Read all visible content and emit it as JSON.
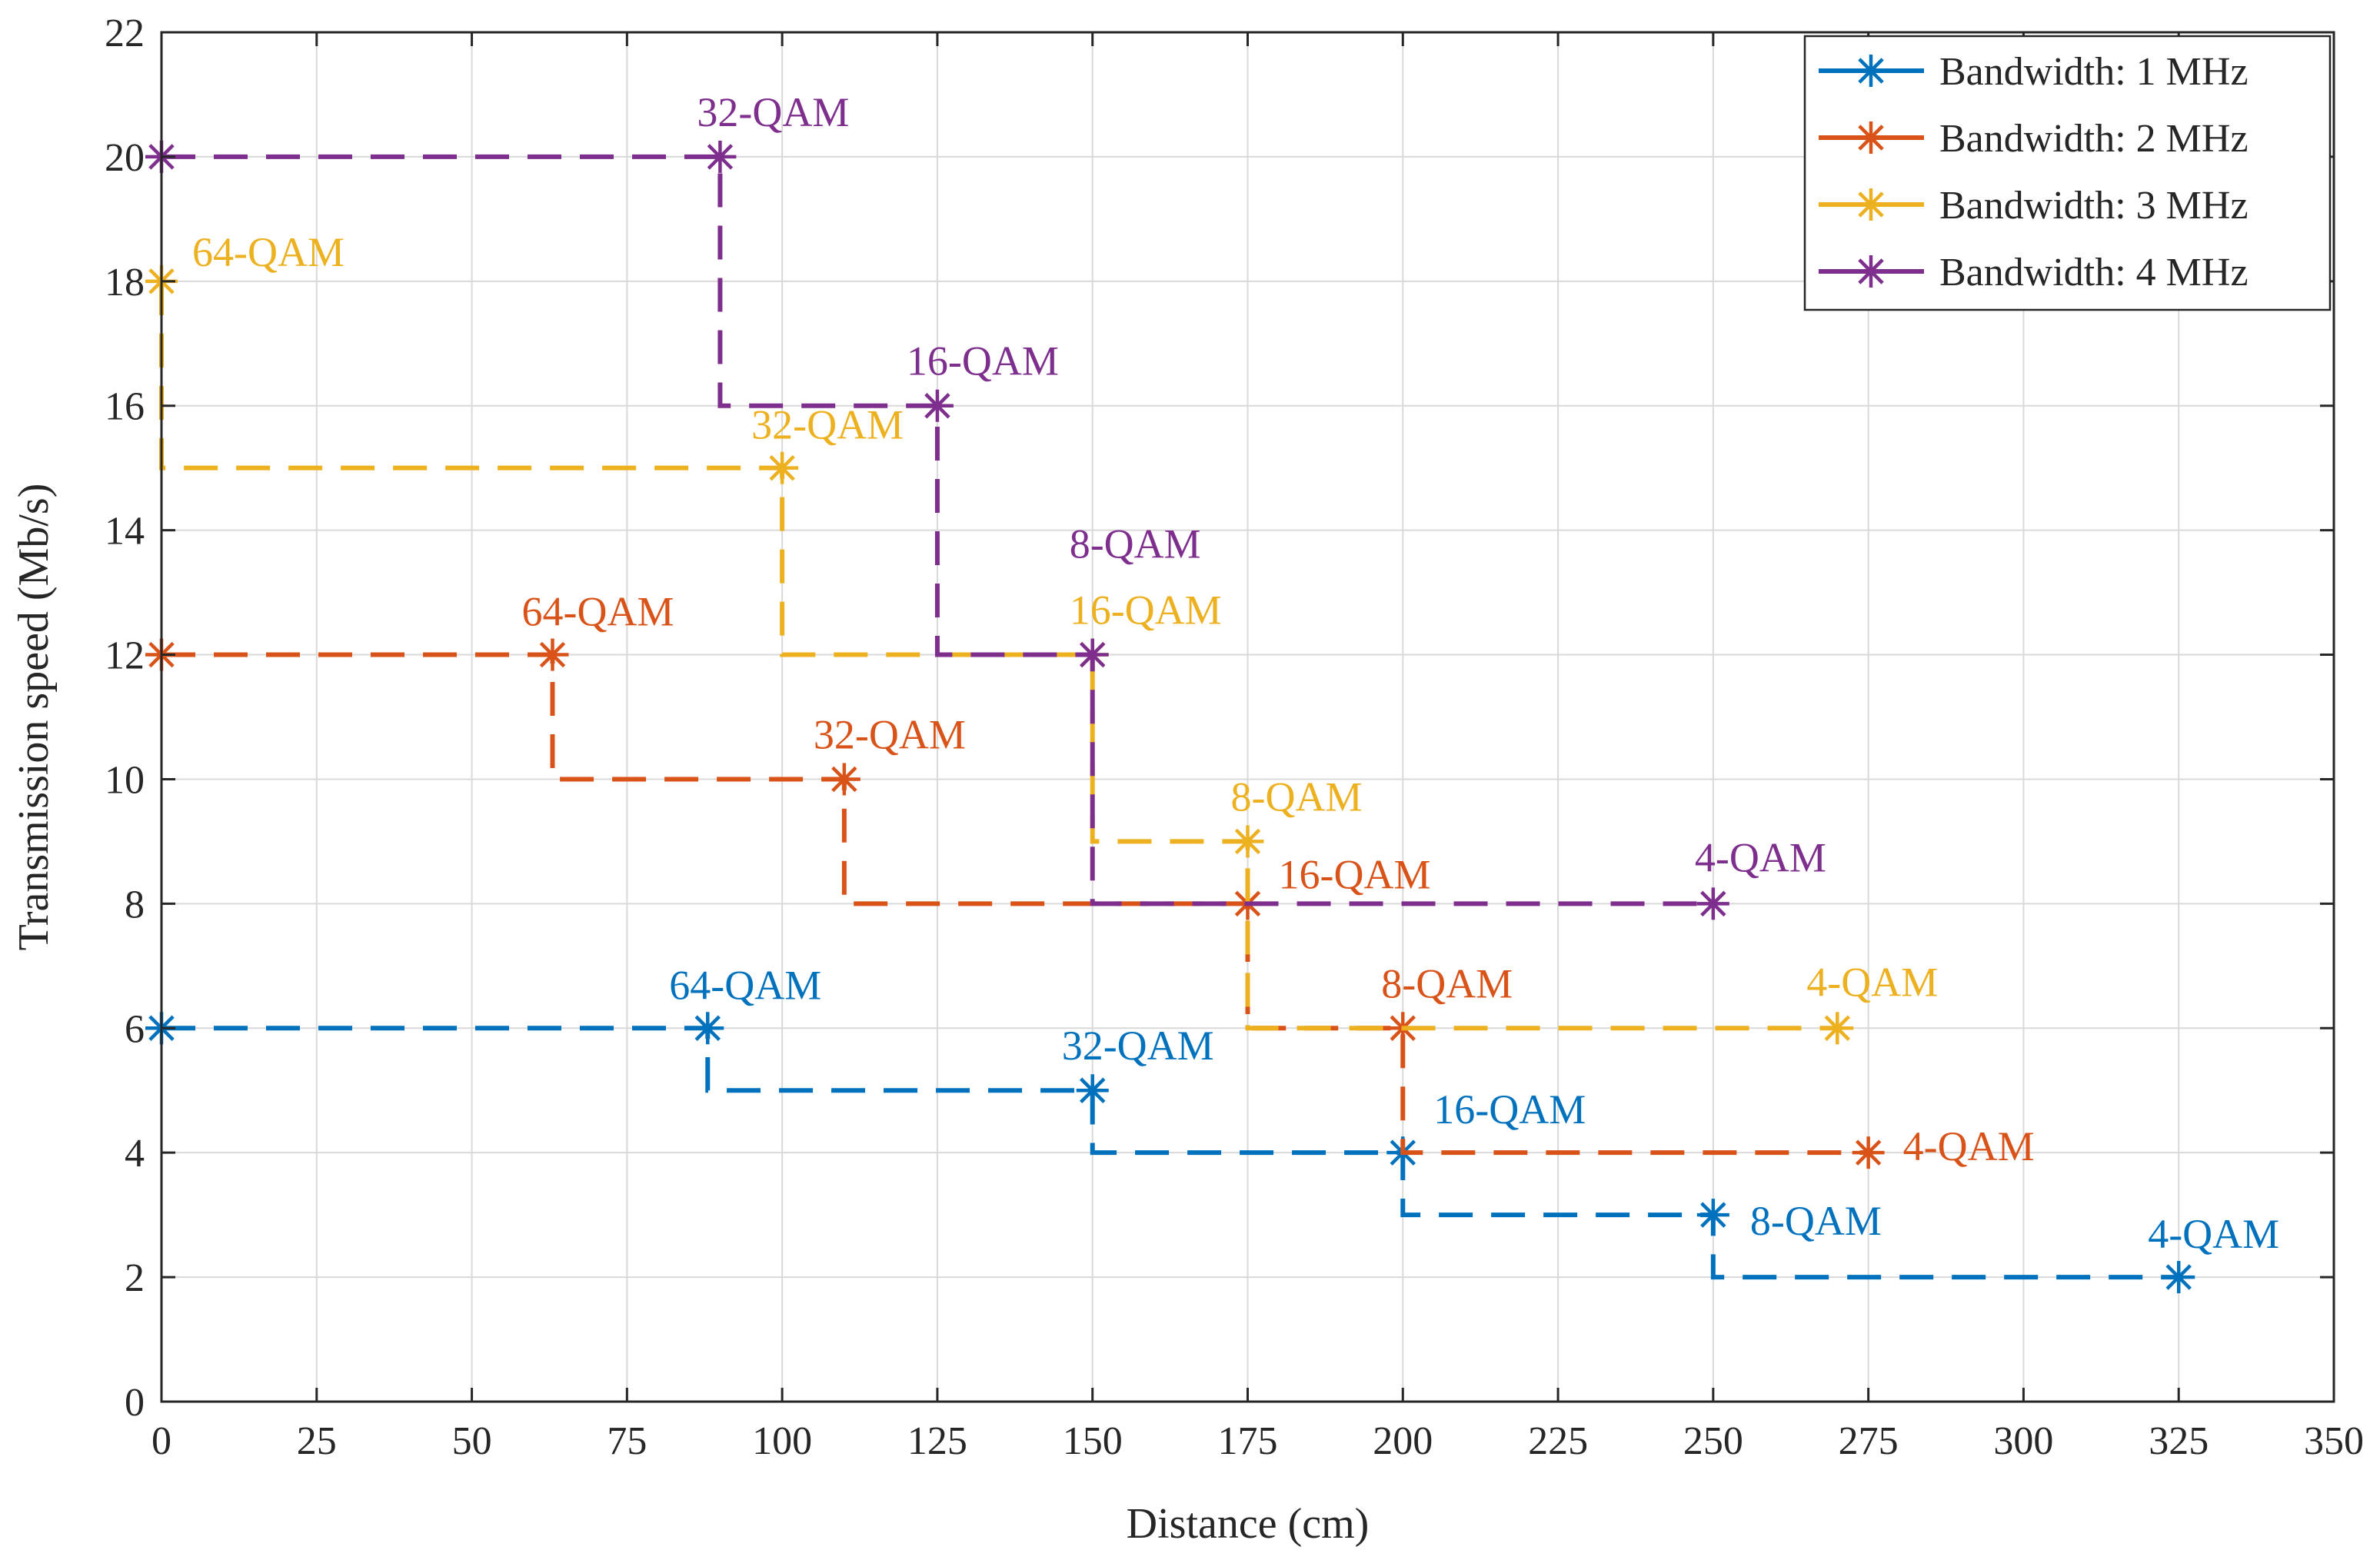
{
  "chart_data": {
    "type": "line",
    "title": "",
    "xlabel": "Distance (cm)",
    "ylabel": "Transmission speed (Mb/s)",
    "xlim": [
      0,
      350
    ],
    "ylim": [
      0,
      22
    ],
    "xticks": [
      0,
      25,
      50,
      75,
      100,
      125,
      150,
      175,
      200,
      225,
      250,
      275,
      300,
      325,
      350
    ],
    "yticks": [
      0,
      2,
      4,
      6,
      8,
      10,
      12,
      14,
      16,
      18,
      20,
      22
    ],
    "grid": true,
    "legend_position": "top-right",
    "line_style": "dashed step with star markers",
    "series": [
      {
        "name": "Bandwidth: 1 MHz",
        "color": "#0072BD",
        "points": [
          {
            "x": 0,
            "y": 6,
            "label": ""
          },
          {
            "x": 88,
            "y": 6,
            "label": "64-QAM"
          },
          {
            "x": 150,
            "y": 5,
            "label": "32-QAM"
          },
          {
            "x": 200,
            "y": 4,
            "label": "16-QAM"
          },
          {
            "x": 250,
            "y": 3,
            "label": "8-QAM"
          },
          {
            "x": 325,
            "y": 2,
            "label": "4-QAM"
          }
        ]
      },
      {
        "name": "Bandwidth: 2 MHz",
        "color": "#D95319",
        "points": [
          {
            "x": 0,
            "y": 12,
            "label": ""
          },
          {
            "x": 63,
            "y": 12,
            "label": "64-QAM"
          },
          {
            "x": 110,
            "y": 10,
            "label": "32-QAM"
          },
          {
            "x": 175,
            "y": 8,
            "label": "16-QAM"
          },
          {
            "x": 200,
            "y": 6,
            "label": "8-QAM"
          },
          {
            "x": 275,
            "y": 4,
            "label": "4-QAM"
          }
        ]
      },
      {
        "name": "Bandwidth: 3 MHz",
        "color": "#EDB120",
        "points": [
          {
            "x": 0,
            "y": 18,
            "label": "64-QAM"
          },
          {
            "x": 100,
            "y": 15,
            "label": "32-QAM"
          },
          {
            "x": 150,
            "y": 12,
            "label": "16-QAM"
          },
          {
            "x": 175,
            "y": 9,
            "label": "8-QAM"
          },
          {
            "x": 270,
            "y": 6,
            "label": "4-QAM"
          }
        ]
      },
      {
        "name": "Bandwidth: 4 MHz",
        "color": "#7E2F8E",
        "points": [
          {
            "x": 0,
            "y": 20,
            "label": ""
          },
          {
            "x": 90,
            "y": 20,
            "label": "32-QAM"
          },
          {
            "x": 125,
            "y": 16,
            "label": "16-QAM"
          },
          {
            "x": 150,
            "y": 12,
            "label": "8-QAM"
          },
          {
            "x": 250,
            "y": 8,
            "label": "4-QAM"
          }
        ]
      }
    ]
  }
}
